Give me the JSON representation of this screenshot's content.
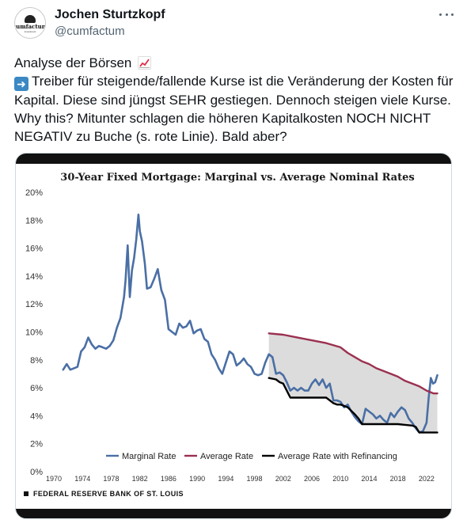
{
  "tweet": {
    "display_name": "Jochen Sturtzkopf",
    "handle": "@cumfactum",
    "avatar_text": "cumfactum",
    "avatar_subtext": "investment",
    "text_line1": "Analyse der Börsen",
    "text_line2": "Treiber für steigende/fallende Kurse ist die Veränderung der Kosten für Kapital. Diese sind jüngst SEHR gestiegen. Dennoch steigen viele Kurse. Why this? Mitunter schlagen die höheren Kapitalkosten NOCH NICHT NEGATIV zu Buche (s. rote Linie). Bald aber?",
    "icons": [
      "more-icon",
      "chart-increasing-emoji-icon",
      "right-arrow-emoji-icon"
    ]
  },
  "chart_data": {
    "type": "line",
    "title": "30-Year Fixed Mortgage: Marginal vs. Average Nominal Rates",
    "source": "FEDERAL RESERVE BANK OF ST. LOUIS",
    "xlim": [
      1970,
      2024
    ],
    "ylim": [
      0,
      20
    ],
    "yticks": [
      "0%",
      "2%",
      "4%",
      "6%",
      "8%",
      "10%",
      "12%",
      "14%",
      "16%",
      "18%",
      "20%"
    ],
    "xticks": [
      "1970",
      "1974",
      "1978",
      "1982",
      "1986",
      "1990",
      "1994",
      "1998",
      "2002",
      "2006",
      "2010",
      "2014",
      "2018",
      "2022"
    ],
    "legend_placement": "bottom",
    "shaded_between": [
      "Average Rate",
      "Average Rate with Refinancing"
    ],
    "series": [
      {
        "name": "Marginal Rate",
        "color": "#4a6fa5",
        "x": [
          1971.3,
          1971.8,
          1972.3,
          1972.8,
          1973.3,
          1973.8,
          1974.3,
          1974.8,
          1975.3,
          1975.8,
          1976.3,
          1976.8,
          1977.3,
          1977.8,
          1978.3,
          1978.8,
          1979.3,
          1979.8,
          1980.0,
          1980.3,
          1980.6,
          1980.9,
          1981.2,
          1981.5,
          1981.8,
          1982.0,
          1982.3,
          1982.7,
          1983.0,
          1983.5,
          1984.0,
          1984.5,
          1985.0,
          1985.5,
          1986.0,
          1986.5,
          1987.0,
          1987.5,
          1988.0,
          1988.5,
          1989.0,
          1989.5,
          1990.0,
          1990.5,
          1991.0,
          1991.5,
          1992.0,
          1992.5,
          1993.0,
          1993.5,
          1994.0,
          1994.5,
          1995.0,
          1995.5,
          1996.0,
          1996.5,
          1997.0,
          1997.5,
          1998.0,
          1998.5,
          1999.0,
          1999.5,
          2000.0,
          2000.5,
          2001.0,
          2001.5,
          2002.0,
          2002.5,
          2003.0,
          2003.5,
          2004.0,
          2004.5,
          2005.0,
          2005.5,
          2006.0,
          2006.5,
          2007.0,
          2007.5,
          2008.0,
          2008.5,
          2009.0,
          2009.5,
          2010.0,
          2010.5,
          2011.0,
          2011.5,
          2012.0,
          2012.5,
          2013.0,
          2013.5,
          2014.0,
          2014.5,
          2015.0,
          2015.5,
          2016.0,
          2016.5,
          2017.0,
          2017.5,
          2018.0,
          2018.5,
          2019.0,
          2019.5,
          2020.0,
          2020.5,
          2021.0,
          2021.5,
          2022.0,
          2022.3,
          2022.6,
          2022.9,
          2023.2,
          2023.5
        ],
        "y": [
          7.3,
          7.7,
          7.3,
          7.4,
          7.5,
          8.6,
          8.9,
          9.6,
          9.1,
          8.8,
          9.0,
          8.9,
          8.8,
          9.0,
          9.4,
          10.3,
          11.0,
          12.5,
          13.7,
          16.2,
          12.5,
          14.4,
          15.3,
          16.6,
          18.4,
          17.2,
          16.5,
          14.9,
          13.1,
          13.2,
          13.8,
          14.5,
          13.0,
          12.3,
          10.2,
          10.0,
          9.8,
          10.6,
          10.3,
          10.4,
          10.8,
          9.9,
          10.1,
          10.2,
          9.5,
          9.3,
          8.4,
          8.0,
          7.4,
          7.0,
          7.8,
          8.6,
          8.4,
          7.6,
          7.8,
          8.1,
          7.7,
          7.5,
          7.0,
          6.9,
          7.0,
          7.8,
          8.4,
          8.2,
          7.0,
          7.1,
          6.9,
          6.4,
          5.8,
          6.0,
          5.8,
          6.0,
          5.8,
          5.8,
          6.3,
          6.6,
          6.2,
          6.6,
          6.0,
          6.3,
          5.1,
          5.1,
          5.0,
          4.6,
          4.8,
          4.3,
          3.9,
          3.6,
          3.4,
          4.5,
          4.3,
          4.1,
          3.8,
          4.0,
          3.7,
          3.5,
          4.2,
          3.9,
          4.3,
          4.6,
          4.4,
          3.8,
          3.5,
          3.1,
          2.8,
          2.9,
          3.5,
          5.3,
          6.7,
          6.3,
          6.4,
          6.9
        ],
        "style": "solid-thick"
      },
      {
        "name": "Average Rate",
        "color": "#9b3050",
        "x": [
          2000.0,
          2002.0,
          2004.0,
          2006.0,
          2008.0,
          2010.0,
          2011.0,
          2012.0,
          2013.0,
          2014.0,
          2015.0,
          2016.0,
          2017.0,
          2018.0,
          2019.0,
          2020.0,
          2021.0,
          2022.0,
          2023.0,
          2023.5
        ],
        "y": [
          9.9,
          9.8,
          9.6,
          9.4,
          9.2,
          8.9,
          8.5,
          8.2,
          7.9,
          7.7,
          7.4,
          7.2,
          7.0,
          6.8,
          6.5,
          6.3,
          6.1,
          5.8,
          5.6,
          5.6
        ]
      },
      {
        "name": "Average Rate with Refinancing",
        "color": "#000000",
        "x": [
          2000.0,
          2001.0,
          2001.5,
          2002.0,
          2003.0,
          2004.0,
          2006.0,
          2008.0,
          2009.0,
          2009.5,
          2010.0,
          2011.0,
          2012.0,
          2012.5,
          2013.0,
          2014.0,
          2016.0,
          2018.0,
          2020.0,
          2020.5,
          2021.0,
          2022.0,
          2023.0,
          2023.5
        ],
        "y": [
          6.7,
          6.6,
          6.4,
          6.3,
          5.3,
          5.3,
          5.3,
          5.3,
          4.9,
          4.8,
          4.8,
          4.6,
          4.1,
          3.8,
          3.4,
          3.4,
          3.4,
          3.4,
          3.3,
          3.2,
          2.8,
          2.8,
          2.8,
          2.8
        ]
      }
    ]
  }
}
